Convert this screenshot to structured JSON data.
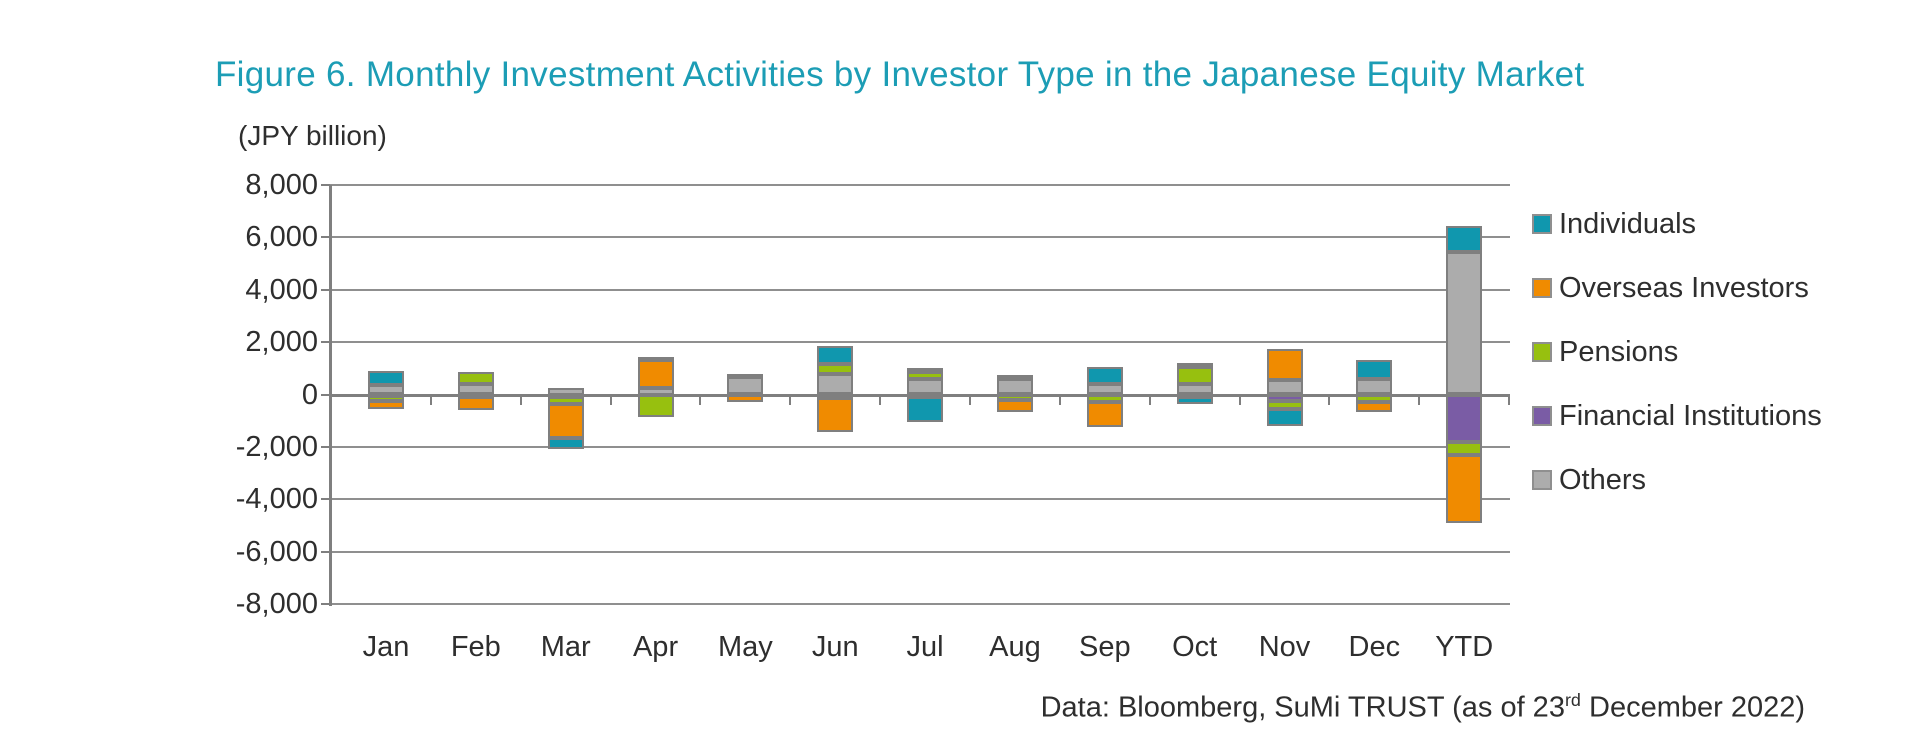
{
  "figure": {
    "title": "Figure 6. Monthly Investment Activities by Investor Type in the Japanese Equity Market",
    "unit_label": "(JPY billion)",
    "source_prefix": "Data: Bloomberg, SuMi TRUST (as of 23",
    "source_sup": "rd",
    "source_suffix": " December 2022)"
  },
  "colors": {
    "title_accent": "#1C9DB5",
    "axis_text": "#2E2E2E",
    "gridline": "#8F8F8F",
    "bar_border": "#7F7F7F",
    "individuals": "#1097AE",
    "overseas_investors": "#F08B00",
    "pensions": "#97C00F",
    "financial_institutions": "#7A5CA5",
    "others": "#ACACAC"
  },
  "chart_data": {
    "type": "bar",
    "stacked": true,
    "title": "Figure 6. Monthly Investment Activities by Investor Type in the Japanese Equity Market",
    "xlabel": "",
    "ylabel": "(JPY billion)",
    "ylim": [
      -8000,
      8000
    ],
    "ytick_step": 2000,
    "ytick_labels": [
      "8,000",
      "6,000",
      "4,000",
      "2,000",
      "0",
      "-2,000",
      "-4,000",
      "-6,000",
      "-8,000"
    ],
    "grid": true,
    "legend_position": "right",
    "categories": [
      "Jan",
      "Feb",
      "Mar",
      "Apr",
      "May",
      "Jun",
      "Jul",
      "Aug",
      "Sep",
      "Oct",
      "Nov",
      "Dec",
      "YTD"
    ],
    "series": [
      {
        "name": "Individuals",
        "color": "#1097AE",
        "values": [
          550,
          0,
          -450,
          150,
          0,
          700,
          -950,
          150,
          650,
          -250,
          -650,
          700,
          1000
        ]
      },
      {
        "name": "Overseas Investors",
        "color": "#F08B00",
        "values": [
          -300,
          -500,
          -1300,
          1050,
          -300,
          -1300,
          150,
          -450,
          -950,
          150,
          1200,
          -350,
          -2600
        ]
      },
      {
        "name": "Pensions",
        "color": "#97C00F",
        "values": [
          -200,
          450,
          -250,
          -850,
          150,
          350,
          250,
          -200,
          -300,
          650,
          -300,
          -300,
          -500
        ]
      },
      {
        "name": "Financial Institutions",
        "color": "#7A5CA5",
        "values": [
          -50,
          -100,
          -100,
          0,
          0,
          -150,
          -100,
          0,
          0,
          -100,
          -250,
          0,
          -1800
        ]
      },
      {
        "name": "Others",
        "color": "#ACACAC",
        "values": [
          350,
          400,
          250,
          250,
          650,
          800,
          600,
          600,
          400,
          400,
          550,
          600,
          5450
        ]
      }
    ],
    "stack_order_bottom_to_top": [
      "Others",
      "Financial Institutions",
      "Pensions",
      "Overseas Investors",
      "Individuals"
    ]
  },
  "legend": {
    "items": [
      {
        "label": "Individuals",
        "color": "#1097AE"
      },
      {
        "label": "Overseas Investors",
        "color": "#F08B00"
      },
      {
        "label": "Pensions",
        "color": "#97C00F"
      },
      {
        "label": "Financial Institutions",
        "color": "#7A5CA5"
      },
      {
        "label": "Others",
        "color": "#ACACAC"
      }
    ]
  }
}
